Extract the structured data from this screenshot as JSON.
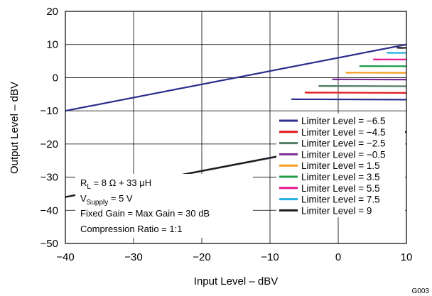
{
  "chart_data": {
    "type": "line",
    "title": "",
    "xlabel": "Input Level – dBV",
    "ylabel": "Output Level – dBV",
    "xlim": [
      -40,
      10
    ],
    "ylim": [
      -50,
      20
    ],
    "x_ticks": [
      -40,
      -30,
      -20,
      -10,
      0,
      10
    ],
    "y_ticks": [
      -50,
      -40,
      -30,
      -20,
      -10,
      0,
      10,
      20
    ],
    "x_tick_labels": [
      "−40",
      "−30",
      "−20",
      "−10",
      "0",
      "10"
    ],
    "y_tick_labels": [
      "−50",
      "−40",
      "−30",
      "−20",
      "−10",
      "0",
      "10",
      "20"
    ],
    "grid": true,
    "legend_position": "bottom-right",
    "series": [
      {
        "name": "Limiter Level = −6.5",
        "limit": -6.5,
        "color": "#2b2e8c"
      },
      {
        "name": "Limiter Level = −4.5",
        "limit": -4.5,
        "color": "#e3171d"
      },
      {
        "name": "Limiter Level = −2.5",
        "limit": -2.5,
        "color": "#4f7c62"
      },
      {
        "name": "Limiter Level = −0.5",
        "limit": -0.5,
        "color": "#7c2b96"
      },
      {
        "name": "Limiter Level = 1.5",
        "limit": 1.5,
        "color": "#f39a1f"
      },
      {
        "name": "Limiter Level = 3.5",
        "limit": 3.5,
        "color": "#1f9e48"
      },
      {
        "name": "Limiter Level = 5.5",
        "limit": 5.5,
        "color": "#e5168c"
      },
      {
        "name": "Limiter Level = 7.5",
        "limit": 7.5,
        "color": "#25aee4"
      },
      {
        "name": "Limiter Level = 9",
        "limit": 9,
        "color": "#1a1a1a"
      }
    ],
    "lower_line": {
      "color": "#2b2e8c",
      "x": [
        -40,
        10
      ],
      "y": [
        -10,
        10
      ]
    },
    "annotations": {
      "rl_main": "R",
      "rl_sub": "L",
      "rl_rest": " = 8 Ω + 33 μH",
      "vs_main": "V",
      "vs_sub": "Supply",
      "vs_rest": " = 5 V",
      "gain": "Fixed Gain = Max Gain = 30 dB",
      "ratio": "Compression Ratio = 1:1"
    },
    "figure_id": "G003"
  }
}
